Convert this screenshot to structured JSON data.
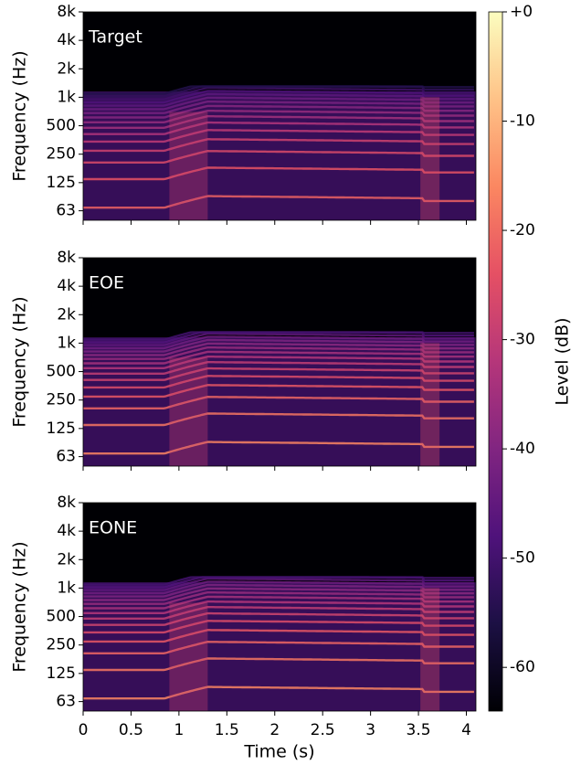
{
  "chart_data": [
    {
      "type": "spectrogram",
      "title": "Target",
      "ylabel": "Frequency (Hz)",
      "ylog": true,
      "ylim": [
        50,
        8000
      ],
      "yticks": [
        63,
        125,
        250,
        500,
        {
          "value": 1000,
          "label": "1k"
        },
        {
          "value": 2000,
          "label": "2k"
        },
        {
          "value": 4000,
          "label": "4k"
        },
        {
          "value": 8000,
          "label": "8k"
        }
      ],
      "xlim": [
        0,
        4.1
      ],
      "xticks": [
        0,
        0.5,
        1,
        1.5,
        2,
        2.5,
        3,
        3.5,
        4
      ]
    },
    {
      "type": "spectrogram",
      "title": "EOE",
      "ylabel": "Frequency (Hz)",
      "ylog": true,
      "ylim": [
        50,
        8000
      ],
      "yticks": [
        63,
        125,
        250,
        500,
        {
          "value": 1000,
          "label": "1k"
        },
        {
          "value": 2000,
          "label": "2k"
        },
        {
          "value": 4000,
          "label": "4k"
        },
        {
          "value": 8000,
          "label": "8k"
        }
      ],
      "xlim": [
        0,
        4.1
      ],
      "xticks": [
        0,
        0.5,
        1,
        1.5,
        2,
        2.5,
        3,
        3.5,
        4
      ]
    },
    {
      "type": "spectrogram",
      "title": "EONE",
      "ylabel": "Frequency (Hz)",
      "xlabel": "Time (s)",
      "ylog": true,
      "ylim": [
        50,
        8000
      ],
      "yticks": [
        63,
        125,
        250,
        500,
        {
          "value": 1000,
          "label": "1k"
        },
        {
          "value": 2000,
          "label": "2k"
        },
        {
          "value": 4000,
          "label": "4k"
        },
        {
          "value": 8000,
          "label": "8k"
        }
      ],
      "xlim": [
        0,
        4.1
      ],
      "xticks": [
        0,
        0.5,
        1,
        1.5,
        2,
        2.5,
        3,
        3.5,
        4
      ]
    }
  ],
  "colorbar": {
    "label": "Level (dB)",
    "colormap": "magma",
    "lim": [
      -64,
      0
    ],
    "ticks": [
      {
        "value": 0,
        "label": "+0"
      },
      -10,
      -20,
      -30,
      -40,
      -50,
      -60
    ]
  }
}
